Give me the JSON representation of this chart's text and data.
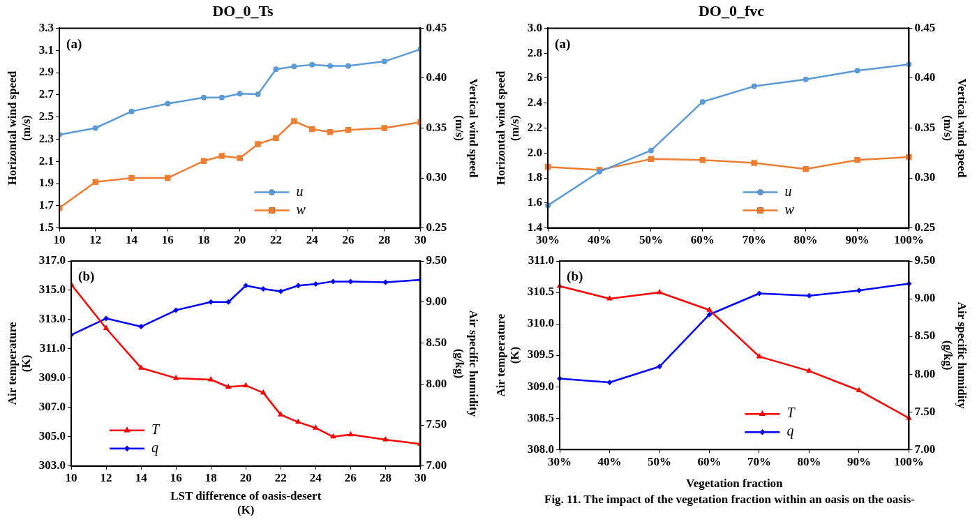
{
  "chart_data": [
    {
      "type": "line",
      "title": "DO_0_Ts",
      "ylabel": "Horizontal wind speed\n(m/s)",
      "y2label": "Vertical wind speed\n(m/s)",
      "annotations": [
        "(a)"
      ],
      "x": [
        10,
        12,
        14,
        16,
        18,
        19,
        20,
        21,
        22,
        23,
        24,
        25,
        26,
        28,
        30
      ],
      "xlim": [
        10,
        30
      ],
      "xticks": [
        10,
        12,
        14,
        16,
        18,
        20,
        22,
        24,
        26,
        28,
        30
      ],
      "ylim": [
        1.5,
        3.3
      ],
      "yticks": [
        1.5,
        1.7,
        1.9,
        2.1,
        2.3,
        2.5,
        2.7,
        2.9,
        3.1,
        3.3
      ],
      "y2lim": [
        0.25,
        0.45
      ],
      "y2ticks": [
        0.25,
        {
          "value": 0.3,
          "label": "0.30"
        },
        0.35,
        {
          "value": 0.4,
          "label": "0.40"
        },
        0.45
      ],
      "legend": "bottom right",
      "series": [
        {
          "name": "u",
          "color": "#5b9bd5",
          "marker": "circle",
          "values": [
            2.34,
            2.4,
            2.55,
            2.62,
            2.675,
            2.675,
            2.71,
            2.705,
            2.93,
            2.955,
            2.97,
            2.96,
            2.96,
            3.0,
            3.11
          ]
        },
        {
          "name": "w",
          "color": "#ed7d31",
          "marker": "square",
          "axis": "y2",
          "values": [
            0.27,
            0.296,
            0.3,
            0.3,
            0.317,
            0.322,
            0.32,
            0.334,
            0.34,
            0.357,
            0.349,
            0.346,
            0.348,
            0.35,
            0.356
          ]
        }
      ]
    },
    {
      "type": "line",
      "xlabel": "LST difference of oasis-desert\n(K)",
      "ylabel": "Air temperature\n(K)",
      "y2label": "Air specific humidity\n(g/kg)",
      "annotations": [
        "(b)"
      ],
      "x": [
        10,
        12,
        14,
        16,
        18,
        19,
        20,
        21,
        22,
        23,
        24,
        25,
        26,
        28,
        30
      ],
      "xlim": [
        10,
        30
      ],
      "xticks": [
        10,
        12,
        14,
        16,
        18,
        20,
        22,
        24,
        26,
        28,
        30
      ],
      "ylim": [
        303,
        317
      ],
      "yticks": [
        {
          "value": 303,
          "label": "303.0"
        },
        {
          "value": 305,
          "label": "305.0"
        },
        {
          "value": 307,
          "label": "307.0"
        },
        {
          "value": 309,
          "label": "309.0"
        },
        {
          "value": 311,
          "label": "311.0"
        },
        {
          "value": 313,
          "label": "313.0"
        },
        {
          "value": 315,
          "label": "315.0"
        },
        {
          "value": 317,
          "label": "317.0"
        }
      ],
      "y2lim": [
        7,
        9.5
      ],
      "y2ticks": [
        {
          "value": 7,
          "label": "7.00"
        },
        {
          "value": 7.5,
          "label": "7.50"
        },
        {
          "value": 8,
          "label": "8.00"
        },
        {
          "value": 8.5,
          "label": "8.50"
        },
        {
          "value": 9,
          "label": "9.00"
        },
        {
          "value": 9.5,
          "label": "9.50"
        }
      ],
      "legend": "bottom left",
      "series": [
        {
          "name": "T",
          "color": "#ff0000",
          "marker": "triangle",
          "values": [
            315.4,
            312.4,
            309.7,
            309.0,
            308.9,
            308.4,
            308.5,
            308.0,
            306.5,
            306.0,
            305.6,
            305.0,
            305.15,
            304.8,
            304.5
          ]
        },
        {
          "name": "q",
          "color": "#0000ff",
          "marker": "diamond",
          "axis": "y2",
          "values": [
            8.6,
            8.8,
            8.7,
            8.9,
            9.0,
            9.0,
            9.2,
            9.16,
            9.13,
            9.2,
            9.22,
            9.25,
            9.25,
            9.24,
            9.27
          ]
        }
      ]
    },
    {
      "type": "line",
      "title": "DO_0_fvc",
      "ylabel": "Horizontal wind speed\n(m/s)",
      "y2label": "Vertical wind speed\n(m/s)",
      "annotations": [
        "(a)"
      ],
      "categories": [
        "30%",
        "40%",
        "50%",
        "60%",
        "70%",
        "80%",
        "90%",
        "100%"
      ],
      "ylim": [
        1.4,
        3.0
      ],
      "yticks": [
        1.4,
        1.6,
        1.8,
        {
          "value": 2,
          "label": "2.0"
        },
        2.2,
        2.4,
        2.6,
        2.8,
        {
          "value": 3,
          "label": "3.0"
        }
      ],
      "y2lim": [
        0.25,
        0.45
      ],
      "y2ticks": [
        0.25,
        {
          "value": 0.3,
          "label": "0.30"
        },
        0.35,
        {
          "value": 0.4,
          "label": "0.40"
        },
        0.45
      ],
      "legend": "bottom right",
      "series": [
        {
          "name": "u",
          "color": "#5b9bd5",
          "marker": "circle",
          "values": [
            1.58,
            1.85,
            2.02,
            2.41,
            2.535,
            2.59,
            2.66,
            2.71
          ]
        },
        {
          "name": "w",
          "color": "#ed7d31",
          "marker": "square",
          "axis": "y2",
          "values": [
            0.311,
            0.308,
            0.319,
            0.318,
            0.315,
            0.309,
            0.318,
            0.321
          ]
        }
      ]
    },
    {
      "type": "line",
      "xlabel": "Vegetation fraction",
      "ylabel": "Air temperature\n(K)",
      "y2label": "Air specific humidity\n(g/kg)",
      "annotations": [
        "(b)",
        "Fig. 11. The impact of the vegetation fraction within an oasis on the oasis-"
      ],
      "categories": [
        "30%",
        "40%",
        "50%",
        "60%",
        "70%",
        "80%",
        "90%",
        "100%"
      ],
      "ylim": [
        308,
        311
      ],
      "yticks": [
        {
          "value": 308,
          "label": "308.0"
        },
        308.5,
        {
          "value": 309,
          "label": "309.0"
        },
        309.5,
        {
          "value": 310,
          "label": "310.0"
        },
        310.5,
        {
          "value": 311,
          "label": "311.0"
        }
      ],
      "y2lim": [
        7,
        9.5
      ],
      "y2ticks": [
        {
          "value": 7,
          "label": "7.00"
        },
        {
          "value": 7.5,
          "label": "7.50"
        },
        {
          "value": 8,
          "label": "8.00"
        },
        {
          "value": 8.5,
          "label": "8.50"
        },
        {
          "value": 9,
          "label": "9.00"
        },
        {
          "value": 9.5,
          "label": "9.50"
        }
      ],
      "legend": "bottom right",
      "series": [
        {
          "name": "T",
          "color": "#ff0000",
          "marker": "triangle",
          "values": [
            310.6,
            310.4,
            310.5,
            310.22,
            309.48,
            309.25,
            308.94,
            308.5
          ]
        },
        {
          "name": "q",
          "color": "#0000ff",
          "marker": "diamond",
          "axis": "y2",
          "values": [
            7.94,
            7.89,
            8.1,
            8.79,
            9.07,
            9.04,
            9.11,
            9.2
          ]
        }
      ]
    }
  ]
}
